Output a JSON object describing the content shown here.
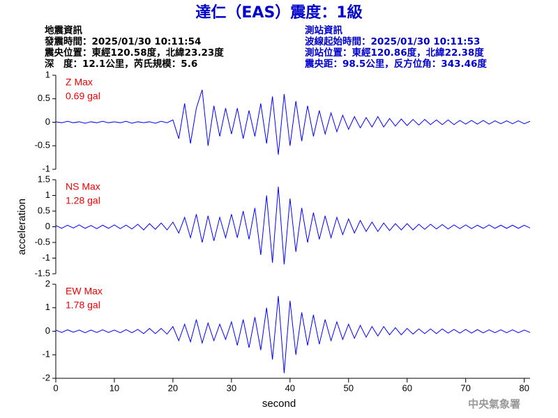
{
  "header": {
    "title": "達仁（EAS）震度：1級",
    "quake_info": [
      "地震資訊",
      "發震時間：2025/01/30 10:11:54",
      "震央位置：東經120.58度，北緯23.23度",
      "深　度：12.1公里，芮氏規模：5.6"
    ],
    "station_info": [
      "測站資訊",
      "波線起始時間：2025/01/30 10:11:53",
      "測站位置：東經120.86度，北緯22.38度",
      "震央距：98.5公里，反方位角：343.46度"
    ],
    "agency": "中央氣象署"
  },
  "chart_data": [
    {
      "type": "line",
      "max_label": "0.69 gal",
      "x": [
        0,
        1,
        2,
        3,
        4,
        5,
        6,
        7,
        8,
        9,
        10,
        11,
        12,
        13,
        14,
        15,
        16,
        17,
        18,
        19,
        20,
        21,
        22,
        23,
        24,
        25,
        26,
        27,
        28,
        29,
        30,
        31,
        32,
        33,
        34,
        35,
        36,
        37,
        38,
        39,
        40,
        41,
        42,
        43,
        44,
        45,
        46,
        47,
        48,
        49,
        50,
        51,
        52,
        53,
        54,
        55,
        56,
        57,
        58,
        59,
        60,
        61,
        62,
        63,
        64,
        65,
        66,
        67,
        68,
        69,
        70,
        71,
        72,
        73,
        74,
        75,
        76,
        77,
        78,
        79,
        80,
        81
      ],
      "series": [
        {
          "name": "Z Max",
          "color": "#0000ff",
          "values": [
            0.01,
            -0.01,
            0.02,
            -0.01,
            0.01,
            -0.02,
            0.01,
            -0.01,
            0.02,
            -0.01,
            0.01,
            -0.01,
            0.02,
            -0.02,
            0.01,
            -0.01,
            0.01,
            -0.02,
            0.02,
            -0.01,
            0.05,
            -0.35,
            0.4,
            -0.45,
            0.3,
            0.69,
            -0.5,
            0.35,
            -0.3,
            0.3,
            -0.25,
            0.3,
            -0.35,
            0.25,
            -0.3,
            0.4,
            -0.45,
            0.55,
            -0.69,
            0.6,
            -0.5,
            0.45,
            -0.4,
            0.35,
            -0.3,
            0.25,
            -0.25,
            0.2,
            -0.2,
            0.15,
            -0.15,
            0.12,
            -0.12,
            0.1,
            -0.1,
            0.12,
            -0.1,
            0.08,
            -0.08,
            0.07,
            -0.07,
            0.06,
            -0.06,
            0.06,
            -0.05,
            0.05,
            -0.05,
            0.05,
            -0.05,
            0.04,
            -0.04,
            0.04,
            -0.04,
            0.04,
            -0.04,
            0.03,
            -0.03,
            0.03,
            -0.03,
            0.03,
            -0.03,
            0.02
          ]
        }
      ],
      "xlim": [
        0,
        81
      ],
      "ylim": [
        -1,
        1
      ],
      "yticks": [
        -1,
        -0.5,
        0,
        0.5,
        1
      ]
    },
    {
      "type": "line",
      "max_label": "1.28 gal",
      "y_label": "acceleration",
      "x": [
        0,
        1,
        2,
        3,
        4,
        5,
        6,
        7,
        8,
        9,
        10,
        11,
        12,
        13,
        14,
        15,
        16,
        17,
        18,
        19,
        20,
        21,
        22,
        23,
        24,
        25,
        26,
        27,
        28,
        29,
        30,
        31,
        32,
        33,
        34,
        35,
        36,
        37,
        38,
        39,
        40,
        41,
        42,
        43,
        44,
        45,
        46,
        47,
        48,
        49,
        50,
        51,
        52,
        53,
        54,
        55,
        56,
        57,
        58,
        59,
        60,
        61,
        62,
        63,
        64,
        65,
        66,
        67,
        68,
        69,
        70,
        71,
        72,
        73,
        74,
        75,
        76,
        77,
        78,
        79,
        80,
        81
      ],
      "series": [
        {
          "name": "NS Max",
          "color": "#0000ff",
          "values": [
            0.04,
            -0.05,
            0.05,
            -0.04,
            0.06,
            -0.05,
            0.04,
            -0.06,
            0.05,
            -0.05,
            0.06,
            -0.06,
            0.05,
            -0.07,
            0.08,
            -0.1,
            0.1,
            -0.08,
            0.12,
            -0.1,
            0.15,
            -0.2,
            0.3,
            -0.35,
            0.4,
            -0.5,
            0.35,
            -0.45,
            0.3,
            -0.35,
            0.4,
            -0.35,
            0.5,
            -0.4,
            0.6,
            -0.9,
            1.0,
            -1.15,
            1.28,
            -1.2,
            0.9,
            -0.8,
            0.6,
            -0.5,
            0.45,
            -0.4,
            0.35,
            -0.35,
            0.3,
            -0.25,
            0.25,
            -0.2,
            0.2,
            -0.15,
            0.15,
            -0.15,
            0.12,
            -0.12,
            0.1,
            -0.1,
            0.1,
            -0.1,
            0.08,
            -0.08,
            0.08,
            -0.07,
            0.07,
            -0.07,
            0.06,
            -0.06,
            0.06,
            -0.06,
            0.05,
            -0.05,
            0.06,
            -0.05,
            0.05,
            -0.05,
            0.05,
            -0.05,
            0.05,
            -0.04
          ]
        }
      ],
      "xlim": [
        0,
        81
      ],
      "ylim": [
        -1.5,
        1.5
      ],
      "yticks": [
        -1.5,
        -1,
        -0.5,
        0,
        0.5,
        1,
        1.5
      ]
    },
    {
      "type": "line",
      "max_label": "1.78 gal",
      "x_label": "second",
      "x": [
        0,
        1,
        2,
        3,
        4,
        5,
        6,
        7,
        8,
        9,
        10,
        11,
        12,
        13,
        14,
        15,
        16,
        17,
        18,
        19,
        20,
        21,
        22,
        23,
        24,
        25,
        26,
        27,
        28,
        29,
        30,
        31,
        32,
        33,
        34,
        35,
        36,
        37,
        38,
        39,
        40,
        41,
        42,
        43,
        44,
        45,
        46,
        47,
        48,
        49,
        50,
        51,
        52,
        53,
        54,
        55,
        56,
        57,
        58,
        59,
        60,
        61,
        62,
        63,
        64,
        65,
        66,
        67,
        68,
        69,
        70,
        71,
        72,
        73,
        74,
        75,
        76,
        77,
        78,
        79,
        80,
        81
      ],
      "series": [
        {
          "name": "EW Max",
          "color": "#0000ff",
          "values": [
            0.05,
            -0.05,
            0.06,
            -0.04,
            0.05,
            -0.06,
            0.05,
            -0.05,
            0.06,
            -0.05,
            0.05,
            -0.06,
            0.07,
            -0.06,
            0.08,
            -0.1,
            0.12,
            -0.1,
            0.12,
            -0.12,
            0.2,
            -0.4,
            0.3,
            -0.45,
            0.5,
            -0.5,
            0.35,
            -0.4,
            0.3,
            -0.35,
            0.4,
            -0.6,
            0.5,
            -0.7,
            0.6,
            -0.8,
            1.0,
            -1.2,
            1.5,
            -1.78,
            1.3,
            -1.0,
            0.8,
            -0.6,
            0.7,
            -0.55,
            0.5,
            -0.4,
            0.4,
            -0.35,
            0.3,
            -0.3,
            0.25,
            -0.25,
            0.2,
            -0.2,
            0.2,
            -0.15,
            0.15,
            -0.15,
            0.12,
            -0.12,
            0.1,
            -0.1,
            0.1,
            -0.1,
            0.1,
            -0.08,
            0.08,
            -0.08,
            0.08,
            -0.08,
            0.07,
            -0.07,
            0.06,
            -0.06,
            0.06,
            -0.06,
            0.06,
            -0.06,
            0.05,
            -0.05
          ]
        }
      ],
      "xlim": [
        0,
        81
      ],
      "ylim": [
        -2,
        2
      ],
      "yticks": [
        -2,
        -1,
        0,
        1,
        2
      ],
      "xticks": [
        0,
        10,
        20,
        30,
        40,
        50,
        60,
        70,
        80
      ]
    }
  ]
}
